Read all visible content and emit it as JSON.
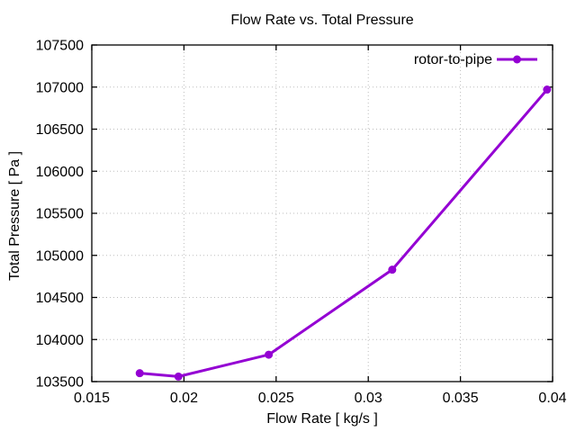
{
  "chart_data": {
    "type": "line",
    "title": "Flow Rate vs. Total Pressure",
    "xlabel": "Flow Rate [ kg/s ]",
    "ylabel": "Total Pressure [ Pa ]",
    "xlim": [
      0.015,
      0.04
    ],
    "ylim": [
      103500,
      107500
    ],
    "xticks": [
      0.015,
      0.02,
      0.025,
      0.03,
      0.035,
      0.04
    ],
    "xtick_labels": [
      "0.015",
      "0.02",
      "0.025",
      "0.03",
      "0.035",
      "0.04"
    ],
    "yticks": [
      103500,
      104000,
      104500,
      105000,
      105500,
      106000,
      106500,
      107000,
      107500
    ],
    "ytick_labels": [
      "103500",
      "104000",
      "104500",
      "105000",
      "105500",
      "106000",
      "106500",
      "107000",
      "107500"
    ],
    "grid": true,
    "legend": {
      "position": "top-right",
      "entries": [
        "rotor-to-pipe"
      ]
    },
    "series": [
      {
        "name": "rotor-to-pipe",
        "color": "#9400d3",
        "marker": "circle",
        "points": [
          [
            0.0176,
            103600
          ],
          [
            0.0197,
            103560
          ],
          [
            0.0246,
            103820
          ],
          [
            0.0313,
            104830
          ],
          [
            0.0397,
            106970
          ]
        ]
      }
    ],
    "axis_color": "#000000",
    "grid_color": "#bdbdbd",
    "background": "#ffffff"
  }
}
